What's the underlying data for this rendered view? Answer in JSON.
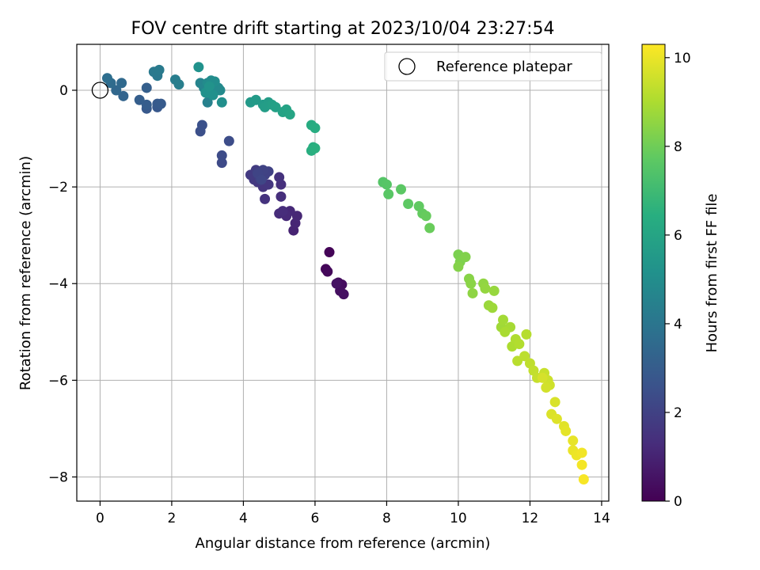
{
  "chart_data": {
    "type": "scatter",
    "title": "FOV centre drift starting at 2023/10/04 23:27:54",
    "xlabel": "Angular distance from reference (arcmin)",
    "ylabel": "Rotation from reference (arcmin)",
    "xlim": [
      -0.65,
      14.2
    ],
    "ylim": [
      -8.5,
      0.95
    ],
    "xticks": [
      0,
      2,
      4,
      6,
      8,
      10,
      12,
      14
    ],
    "yticks": [
      0,
      -2,
      -4,
      -6,
      -8
    ],
    "grid": true,
    "legend": {
      "position": "top-right",
      "entries": [
        "Reference platepar"
      ]
    },
    "reference_point": {
      "x": 0,
      "y": 0
    },
    "colorbar": {
      "label": "Hours from first FF file",
      "colormap": "viridis",
      "range": [
        0,
        10.3
      ],
      "ticks": [
        0,
        2,
        4,
        6,
        8,
        10
      ]
    },
    "points": [
      {
        "x": 6.4,
        "y": -3.35,
        "c": 0.1
      },
      {
        "x": 6.3,
        "y": -3.7,
        "c": 0.15
      },
      {
        "x": 6.35,
        "y": -3.75,
        "c": 0.2
      },
      {
        "x": 6.65,
        "y": -3.98,
        "c": 0.3
      },
      {
        "x": 6.75,
        "y": -4.02,
        "c": 0.35
      },
      {
        "x": 6.7,
        "y": -4.15,
        "c": 0.4
      },
      {
        "x": 6.8,
        "y": -4.22,
        "c": 0.45
      },
      {
        "x": 6.6,
        "y": -4.0,
        "c": 0.5
      },
      {
        "x": 5.4,
        "y": -2.9,
        "c": 1.0
      },
      {
        "x": 5.45,
        "y": -2.75,
        "c": 1.05
      },
      {
        "x": 5.5,
        "y": -2.6,
        "c": 1.1
      },
      {
        "x": 5.3,
        "y": -2.5,
        "c": 1.15
      },
      {
        "x": 5.2,
        "y": -2.6,
        "c": 1.2
      },
      {
        "x": 5.0,
        "y": -2.55,
        "c": 1.25
      },
      {
        "x": 5.1,
        "y": -2.5,
        "c": 1.3
      },
      {
        "x": 5.05,
        "y": -2.2,
        "c": 1.35
      },
      {
        "x": 5.05,
        "y": -1.95,
        "c": 1.4
      },
      {
        "x": 5.0,
        "y": -1.8,
        "c": 1.45
      },
      {
        "x": 4.6,
        "y": -2.25,
        "c": 1.5
      },
      {
        "x": 4.55,
        "y": -2.0,
        "c": 1.55
      },
      {
        "x": 4.7,
        "y": -1.95,
        "c": 1.6
      },
      {
        "x": 4.4,
        "y": -1.9,
        "c": 1.65
      },
      {
        "x": 4.3,
        "y": -1.85,
        "c": 1.7
      },
      {
        "x": 4.2,
        "y": -1.75,
        "c": 1.75
      },
      {
        "x": 4.35,
        "y": -1.65,
        "c": 1.8
      },
      {
        "x": 4.5,
        "y": -1.7,
        "c": 1.85
      },
      {
        "x": 4.45,
        "y": -1.8,
        "c": 1.9
      },
      {
        "x": 4.6,
        "y": -1.75,
        "c": 1.95
      },
      {
        "x": 4.7,
        "y": -1.68,
        "c": 2.0
      },
      {
        "x": 4.55,
        "y": -1.65,
        "c": 2.05
      },
      {
        "x": 4.4,
        "y": -1.72,
        "c": 2.1
      },
      {
        "x": 4.5,
        "y": -1.85,
        "c": 2.15
      },
      {
        "x": 3.4,
        "y": -1.5,
        "c": 2.3
      },
      {
        "x": 3.4,
        "y": -1.35,
        "c": 2.35
      },
      {
        "x": 3.6,
        "y": -1.05,
        "c": 2.4
      },
      {
        "x": 2.8,
        "y": -0.85,
        "c": 2.5
      },
      {
        "x": 2.85,
        "y": -0.72,
        "c": 2.55
      },
      {
        "x": 1.6,
        "y": -0.35,
        "c": 2.8
      },
      {
        "x": 1.3,
        "y": -0.38,
        "c": 2.85
      },
      {
        "x": 1.6,
        "y": -0.28,
        "c": 2.9
      },
      {
        "x": 1.7,
        "y": -0.28,
        "c": 2.95
      },
      {
        "x": 1.3,
        "y": -0.3,
        "c": 3.0
      },
      {
        "x": 1.1,
        "y": -0.2,
        "c": 3.05
      },
      {
        "x": 1.3,
        "y": 0.05,
        "c": 3.1
      },
      {
        "x": 0.65,
        "y": -0.12,
        "c": 3.3
      },
      {
        "x": 0.45,
        "y": 0.0,
        "c": 3.4
      },
      {
        "x": 0.6,
        "y": 0.15,
        "c": 3.5
      },
      {
        "x": 0.3,
        "y": 0.15,
        "c": 3.6
      },
      {
        "x": 0.2,
        "y": 0.25,
        "c": 3.7
      },
      {
        "x": 1.6,
        "y": 0.3,
        "c": 4.1
      },
      {
        "x": 1.5,
        "y": 0.38,
        "c": 4.15
      },
      {
        "x": 1.65,
        "y": 0.42,
        "c": 4.2
      },
      {
        "x": 2.1,
        "y": 0.22,
        "c": 4.3
      },
      {
        "x": 2.2,
        "y": 0.12,
        "c": 4.35
      },
      {
        "x": 3.0,
        "y": -0.25,
        "c": 4.5
      },
      {
        "x": 2.8,
        "y": 0.15,
        "c": 4.6
      },
      {
        "x": 2.9,
        "y": 0.05,
        "c": 4.65
      },
      {
        "x": 3.1,
        "y": 0.0,
        "c": 4.7
      },
      {
        "x": 3.2,
        "y": 0.1,
        "c": 4.75
      },
      {
        "x": 3.3,
        "y": 0.05,
        "c": 4.8
      },
      {
        "x": 3.35,
        "y": 0.0,
        "c": 4.85
      },
      {
        "x": 3.0,
        "y": 0.15,
        "c": 4.9
      },
      {
        "x": 3.1,
        "y": 0.2,
        "c": 4.95
      },
      {
        "x": 3.2,
        "y": 0.18,
        "c": 5.0
      },
      {
        "x": 3.4,
        "y": -0.25,
        "c": 5.05
      },
      {
        "x": 3.15,
        "y": -0.1,
        "c": 5.1
      },
      {
        "x": 2.95,
        "y": -0.05,
        "c": 5.15
      },
      {
        "x": 2.75,
        "y": 0.48,
        "c": 5.2
      },
      {
        "x": 3.05,
        "y": 0.08,
        "c": 5.25
      },
      {
        "x": 4.2,
        "y": -0.25,
        "c": 5.5
      },
      {
        "x": 4.35,
        "y": -0.2,
        "c": 5.55
      },
      {
        "x": 4.55,
        "y": -0.3,
        "c": 5.6
      },
      {
        "x": 4.7,
        "y": -0.25,
        "c": 5.65
      },
      {
        "x": 4.6,
        "y": -0.35,
        "c": 5.7
      },
      {
        "x": 4.8,
        "y": -0.3,
        "c": 5.75
      },
      {
        "x": 4.9,
        "y": -0.35,
        "c": 5.8
      },
      {
        "x": 5.1,
        "y": -0.45,
        "c": 5.9
      },
      {
        "x": 5.2,
        "y": -0.4,
        "c": 5.95
      },
      {
        "x": 5.3,
        "y": -0.5,
        "c": 6.0
      },
      {
        "x": 5.9,
        "y": -0.72,
        "c": 6.3
      },
      {
        "x": 6.0,
        "y": -0.78,
        "c": 6.35
      },
      {
        "x": 5.95,
        "y": -1.18,
        "c": 6.4
      },
      {
        "x": 5.9,
        "y": -1.25,
        "c": 6.45
      },
      {
        "x": 6.0,
        "y": -1.2,
        "c": 6.5
      },
      {
        "x": 7.9,
        "y": -1.9,
        "c": 7.5
      },
      {
        "x": 8.0,
        "y": -1.95,
        "c": 7.55
      },
      {
        "x": 8.05,
        "y": -2.15,
        "c": 7.6
      },
      {
        "x": 8.4,
        "y": -2.05,
        "c": 7.65
      },
      {
        "x": 8.6,
        "y": -2.35,
        "c": 7.7
      },
      {
        "x": 8.9,
        "y": -2.4,
        "c": 7.75
      },
      {
        "x": 9.0,
        "y": -2.55,
        "c": 7.8
      },
      {
        "x": 9.1,
        "y": -2.6,
        "c": 7.85
      },
      {
        "x": 9.2,
        "y": -2.85,
        "c": 7.9
      },
      {
        "x": 10.0,
        "y": -3.4,
        "c": 8.2
      },
      {
        "x": 10.05,
        "y": -3.55,
        "c": 8.25
      },
      {
        "x": 10.2,
        "y": -3.45,
        "c": 8.3
      },
      {
        "x": 10.0,
        "y": -3.65,
        "c": 8.35
      },
      {
        "x": 10.3,
        "y": -3.9,
        "c": 8.4
      },
      {
        "x": 10.35,
        "y": -4.0,
        "c": 8.45
      },
      {
        "x": 10.4,
        "y": -4.2,
        "c": 8.5
      },
      {
        "x": 10.7,
        "y": -4.0,
        "c": 8.55
      },
      {
        "x": 10.75,
        "y": -4.1,
        "c": 8.6
      },
      {
        "x": 11.0,
        "y": -4.15,
        "c": 8.65
      },
      {
        "x": 10.85,
        "y": -4.45,
        "c": 8.7
      },
      {
        "x": 10.95,
        "y": -4.5,
        "c": 8.75
      },
      {
        "x": 11.2,
        "y": -4.9,
        "c": 8.8
      },
      {
        "x": 11.25,
        "y": -4.75,
        "c": 8.85
      },
      {
        "x": 11.45,
        "y": -4.9,
        "c": 8.9
      },
      {
        "x": 11.3,
        "y": -5.0,
        "c": 8.95
      },
      {
        "x": 11.5,
        "y": -5.3,
        "c": 9.0
      },
      {
        "x": 11.6,
        "y": -5.15,
        "c": 9.05
      },
      {
        "x": 11.7,
        "y": -5.25,
        "c": 9.1
      },
      {
        "x": 11.9,
        "y": -5.05,
        "c": 9.15
      },
      {
        "x": 11.65,
        "y": -5.6,
        "c": 9.2
      },
      {
        "x": 11.85,
        "y": -5.5,
        "c": 9.25
      },
      {
        "x": 12.0,
        "y": -5.65,
        "c": 9.3
      },
      {
        "x": 12.1,
        "y": -5.8,
        "c": 9.35
      },
      {
        "x": 12.2,
        "y": -5.95,
        "c": 9.4
      },
      {
        "x": 12.4,
        "y": -5.85,
        "c": 9.45
      },
      {
        "x": 12.5,
        "y": -6.0,
        "c": 9.5
      },
      {
        "x": 12.55,
        "y": -6.1,
        "c": 9.55
      },
      {
        "x": 12.45,
        "y": -6.15,
        "c": 9.6
      },
      {
        "x": 12.35,
        "y": -5.95,
        "c": 9.65
      },
      {
        "x": 12.7,
        "y": -6.45,
        "c": 9.7
      },
      {
        "x": 12.6,
        "y": -6.7,
        "c": 9.75
      },
      {
        "x": 12.75,
        "y": -6.8,
        "c": 9.8
      },
      {
        "x": 12.95,
        "y": -6.95,
        "c": 9.85
      },
      {
        "x": 13.0,
        "y": -7.05,
        "c": 9.9
      },
      {
        "x": 13.2,
        "y": -7.25,
        "c": 9.95
      },
      {
        "x": 13.2,
        "y": -7.45,
        "c": 10.0
      },
      {
        "x": 13.3,
        "y": -7.55,
        "c": 10.05
      },
      {
        "x": 13.45,
        "y": -7.5,
        "c": 10.1
      },
      {
        "x": 13.45,
        "y": -7.75,
        "c": 10.15
      },
      {
        "x": 13.5,
        "y": -8.05,
        "c": 10.2
      }
    ]
  }
}
